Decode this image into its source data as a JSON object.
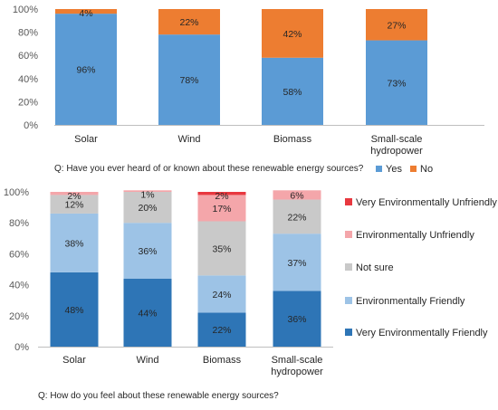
{
  "chart_data": [
    {
      "type": "bar",
      "stacked": true,
      "percent": true,
      "question": "Q: Have you ever heard of or known about these renewable energy sources?",
      "categories": [
        "Solar",
        "Wind",
        "Biomass",
        "Small-scale\nhydropower"
      ],
      "series": [
        {
          "name": "Yes",
          "values": [
            96,
            78,
            58,
            73
          ],
          "color": "#5B9BD5"
        },
        {
          "name": "No",
          "values": [
            4,
            22,
            42,
            27
          ],
          "color": "#ED7D31"
        }
      ],
      "ylim": [
        0,
        100
      ],
      "yticks": [
        "0%",
        "20%",
        "40%",
        "60%",
        "80%",
        "100%"
      ],
      "legend": "bottom-right",
      "grid": false
    },
    {
      "type": "bar",
      "stacked": true,
      "percent": true,
      "question": "Q: How do you feel about these renewable energy sources?",
      "categories": [
        "Solar",
        "Wind",
        "Biomass",
        "Small-scale\nhydropower"
      ],
      "series": [
        {
          "name": "Very Environmentally Friendly",
          "values": [
            48,
            44,
            22,
            36
          ],
          "color": "#2E75B6"
        },
        {
          "name": "Environmentally Friendly",
          "values": [
            38,
            36,
            24,
            37
          ],
          "color": "#9DC3E6"
        },
        {
          "name": "Not sure",
          "values": [
            12,
            20,
            35,
            22
          ],
          "color": "#C9C9C9"
        },
        {
          "name": "Environmentally Unfriendly",
          "values": [
            2,
            1,
            17,
            6
          ],
          "color": "#F4A6AA"
        },
        {
          "name": "Very Environmentally Unfriendly",
          "values": [
            0,
            0,
            2,
            0
          ],
          "color": "#E8383F"
        }
      ],
      "data_labels_shown": [
        [
          "48%",
          "44%",
          "22%",
          "36%"
        ],
        [
          "38%",
          "36%",
          "24%",
          "37%"
        ],
        [
          "12%",
          "20%",
          "35%",
          "22%"
        ],
        [
          "2%",
          "1%",
          "17%",
          "6%"
        ],
        [
          "",
          "",
          "2%",
          ""
        ]
      ],
      "ylim": [
        0,
        100
      ],
      "yticks": [
        "0%",
        "20%",
        "40%",
        "60%",
        "80%",
        "100%"
      ],
      "legend": "right",
      "grid": false
    }
  ]
}
